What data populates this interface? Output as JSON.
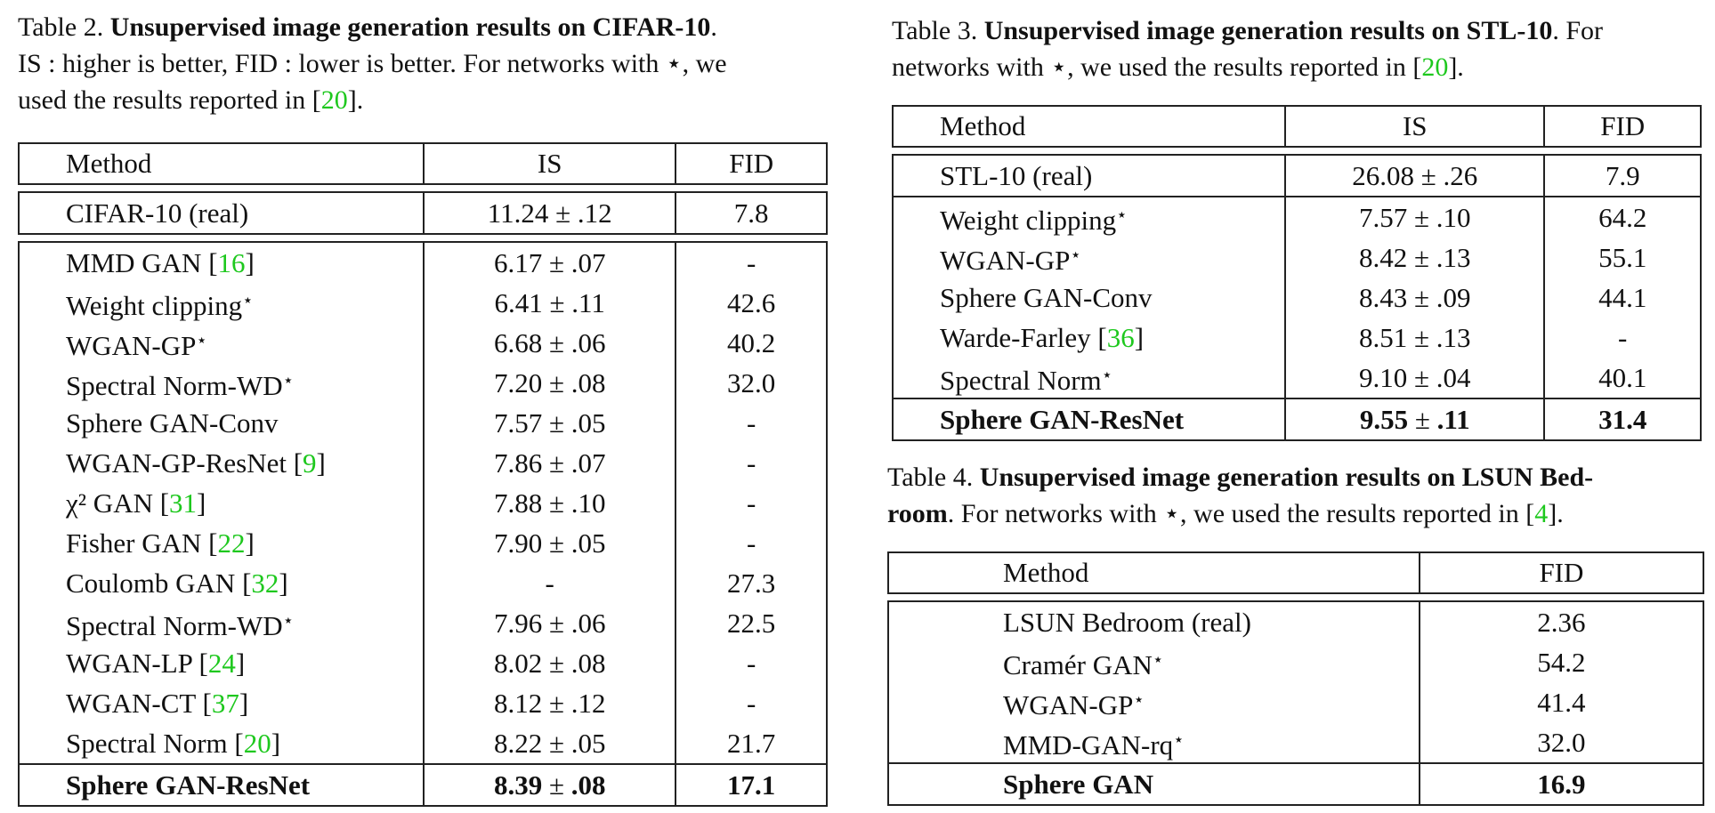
{
  "table2": {
    "caption_label": "Table 2. ",
    "caption_title": "Unsupervised image generation results on CIFAR-10",
    "caption_line1_end": ".",
    "caption_line2": "IS : higher is better, FID : lower is better. For networks with ⋆, we",
    "caption_line3_pre": "used the results reported in [",
    "caption_cite": "20",
    "caption_line3_post": "].",
    "headers": [
      "Method",
      "IS",
      "FID"
    ],
    "real_row": {
      "method": "CIFAR-10 (real)",
      "is": "11.24 ± .12",
      "fid": "7.8"
    },
    "rows": [
      {
        "name": "MMD GAN ",
        "cite": "16",
        "star": "",
        "is": "6.17 ± .07",
        "fid": "-"
      },
      {
        "name": "Weight clipping",
        "cite": "",
        "star": "⋆",
        "is": "6.41 ± .11",
        "fid": "42.6"
      },
      {
        "name": "WGAN-GP",
        "cite": "",
        "star": "⋆",
        "is": "6.68 ± .06",
        "fid": "40.2"
      },
      {
        "name": "Spectral Norm-WD",
        "cite": "",
        "star": "⋆",
        "is": "7.20 ± .08",
        "fid": "32.0"
      },
      {
        "name": "Sphere GAN-Conv",
        "cite": "",
        "star": "",
        "is": "7.57 ± .05",
        "fid": "-"
      },
      {
        "name": "WGAN-GP-ResNet ",
        "cite": "9",
        "star": "",
        "is": "7.86 ± .07",
        "fid": "-"
      },
      {
        "name": "χ² GAN ",
        "cite": "31",
        "star": "",
        "is": "7.88 ± .10",
        "fid": "-"
      },
      {
        "name": "Fisher GAN ",
        "cite": "22",
        "star": "",
        "is": "7.90 ± .05",
        "fid": "-"
      },
      {
        "name": "Coulomb GAN ",
        "cite": "32",
        "star": "",
        "is": "-",
        "fid": "27.3"
      },
      {
        "name": "Spectral Norm-WD",
        "cite": "",
        "star": "⋆",
        "is": "7.96 ± .06",
        "fid": "22.5"
      },
      {
        "name": "WGAN-LP ",
        "cite": "24",
        "star": "",
        "is": "8.02 ± .08",
        "fid": "-"
      },
      {
        "name": "WGAN-CT ",
        "cite": "37",
        "star": "",
        "is": "8.12 ± .12",
        "fid": "-"
      },
      {
        "name": "Spectral Norm ",
        "cite": "20",
        "star": "",
        "is": "8.22 ± .05",
        "fid": "21.7"
      }
    ],
    "best_row": {
      "method": "Sphere GAN-ResNet",
      "is_a": "8.39",
      "is_pm": " ± ",
      "is_b": ".08",
      "fid": "17.1"
    }
  },
  "table3": {
    "caption_label": "Table 3. ",
    "caption_title": "Unsupervised image generation results on STL-10",
    "caption_line1_end": ". For",
    "caption_line2_pre": "networks with ⋆, we used the results reported in [",
    "caption_cite": "20",
    "caption_line2_post": "].",
    "headers": [
      "Method",
      "IS",
      "FID"
    ],
    "real_row": {
      "method": "STL-10 (real)",
      "is": "26.08 ± .26",
      "fid": "7.9"
    },
    "rows": [
      {
        "name": "Weight clipping",
        "cite": "",
        "star": "⋆",
        "is": "7.57 ± .10",
        "fid": "64.2"
      },
      {
        "name": "WGAN-GP",
        "cite": "",
        "star": "⋆",
        "is": "8.42 ± .13",
        "fid": "55.1"
      },
      {
        "name": "Sphere GAN-Conv",
        "cite": "",
        "star": "",
        "is": "8.43 ± .09",
        "fid": "44.1"
      },
      {
        "name": "Warde-Farley ",
        "cite": "36",
        "star": "",
        "is": "8.51 ± .13",
        "fid": "-"
      },
      {
        "name": "Spectral Norm",
        "cite": "",
        "star": "⋆",
        "is": "9.10 ± .04",
        "fid": "40.1"
      }
    ],
    "best_row": {
      "method": "Sphere GAN-ResNet",
      "is_a": "9.55",
      "is_pm": " ± ",
      "is_b": ".11",
      "fid": "31.4"
    }
  },
  "table4": {
    "caption_label": "Table 4. ",
    "caption_title_line1": "Unsupervised image generation results on LSUN Bed-",
    "caption_title_line2": "room",
    "caption_line2_rest": ". For networks with ⋆, we used the results reported in [",
    "caption_cite": "4",
    "caption_line2_post": "].",
    "headers": [
      "Method",
      "FID"
    ],
    "real_row": {
      "method": "LSUN Bedroom (real)",
      "fid": "2.36"
    },
    "rows": [
      {
        "name": "Cramér GAN",
        "star": "⋆",
        "fid": "54.2"
      },
      {
        "name": "WGAN-GP",
        "star": "⋆",
        "fid": "41.4"
      },
      {
        "name": "MMD-GAN-rq",
        "star": "⋆",
        "fid": "32.0"
      }
    ],
    "best_row": {
      "method": "Sphere GAN",
      "fid": "16.9"
    }
  }
}
